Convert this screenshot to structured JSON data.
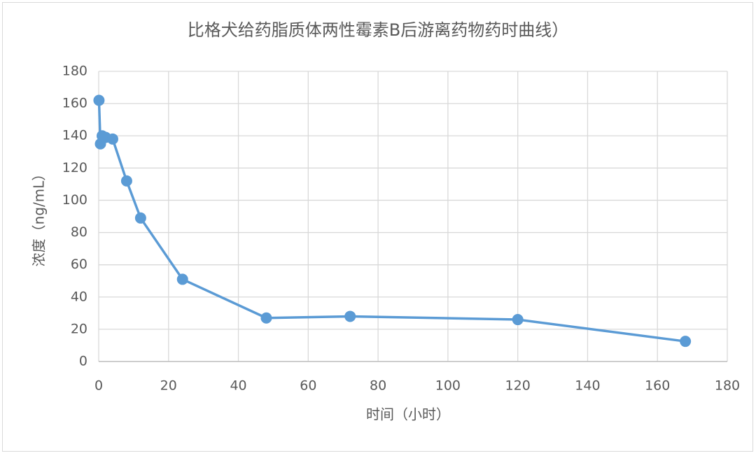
{
  "chart_data": {
    "type": "line",
    "title": "比格犬给药脂质体两性霉素B后游离药物药时曲线）",
    "x_label": "时间（小时）",
    "y_label": "浓度（ng/mL）",
    "x": [
      0.083,
      0.5,
      1,
      2,
      4,
      8,
      12,
      24,
      48,
      72,
      120,
      168
    ],
    "series": [
      {
        "color": "#5b9bd5",
        "values": [
          162,
          135,
          140,
          139,
          138,
          112,
          89,
          51,
          27,
          28,
          26,
          12.5
        ]
      }
    ],
    "xlim": [
      0,
      180
    ],
    "xticks": [
      0,
      20,
      40,
      60,
      80,
      100,
      120,
      140,
      160,
      180
    ],
    "ylim": [
      0,
      180
    ],
    "yticks": [
      0,
      20,
      40,
      60,
      80,
      100,
      120,
      140,
      160,
      180
    ],
    "grid": true
  }
}
